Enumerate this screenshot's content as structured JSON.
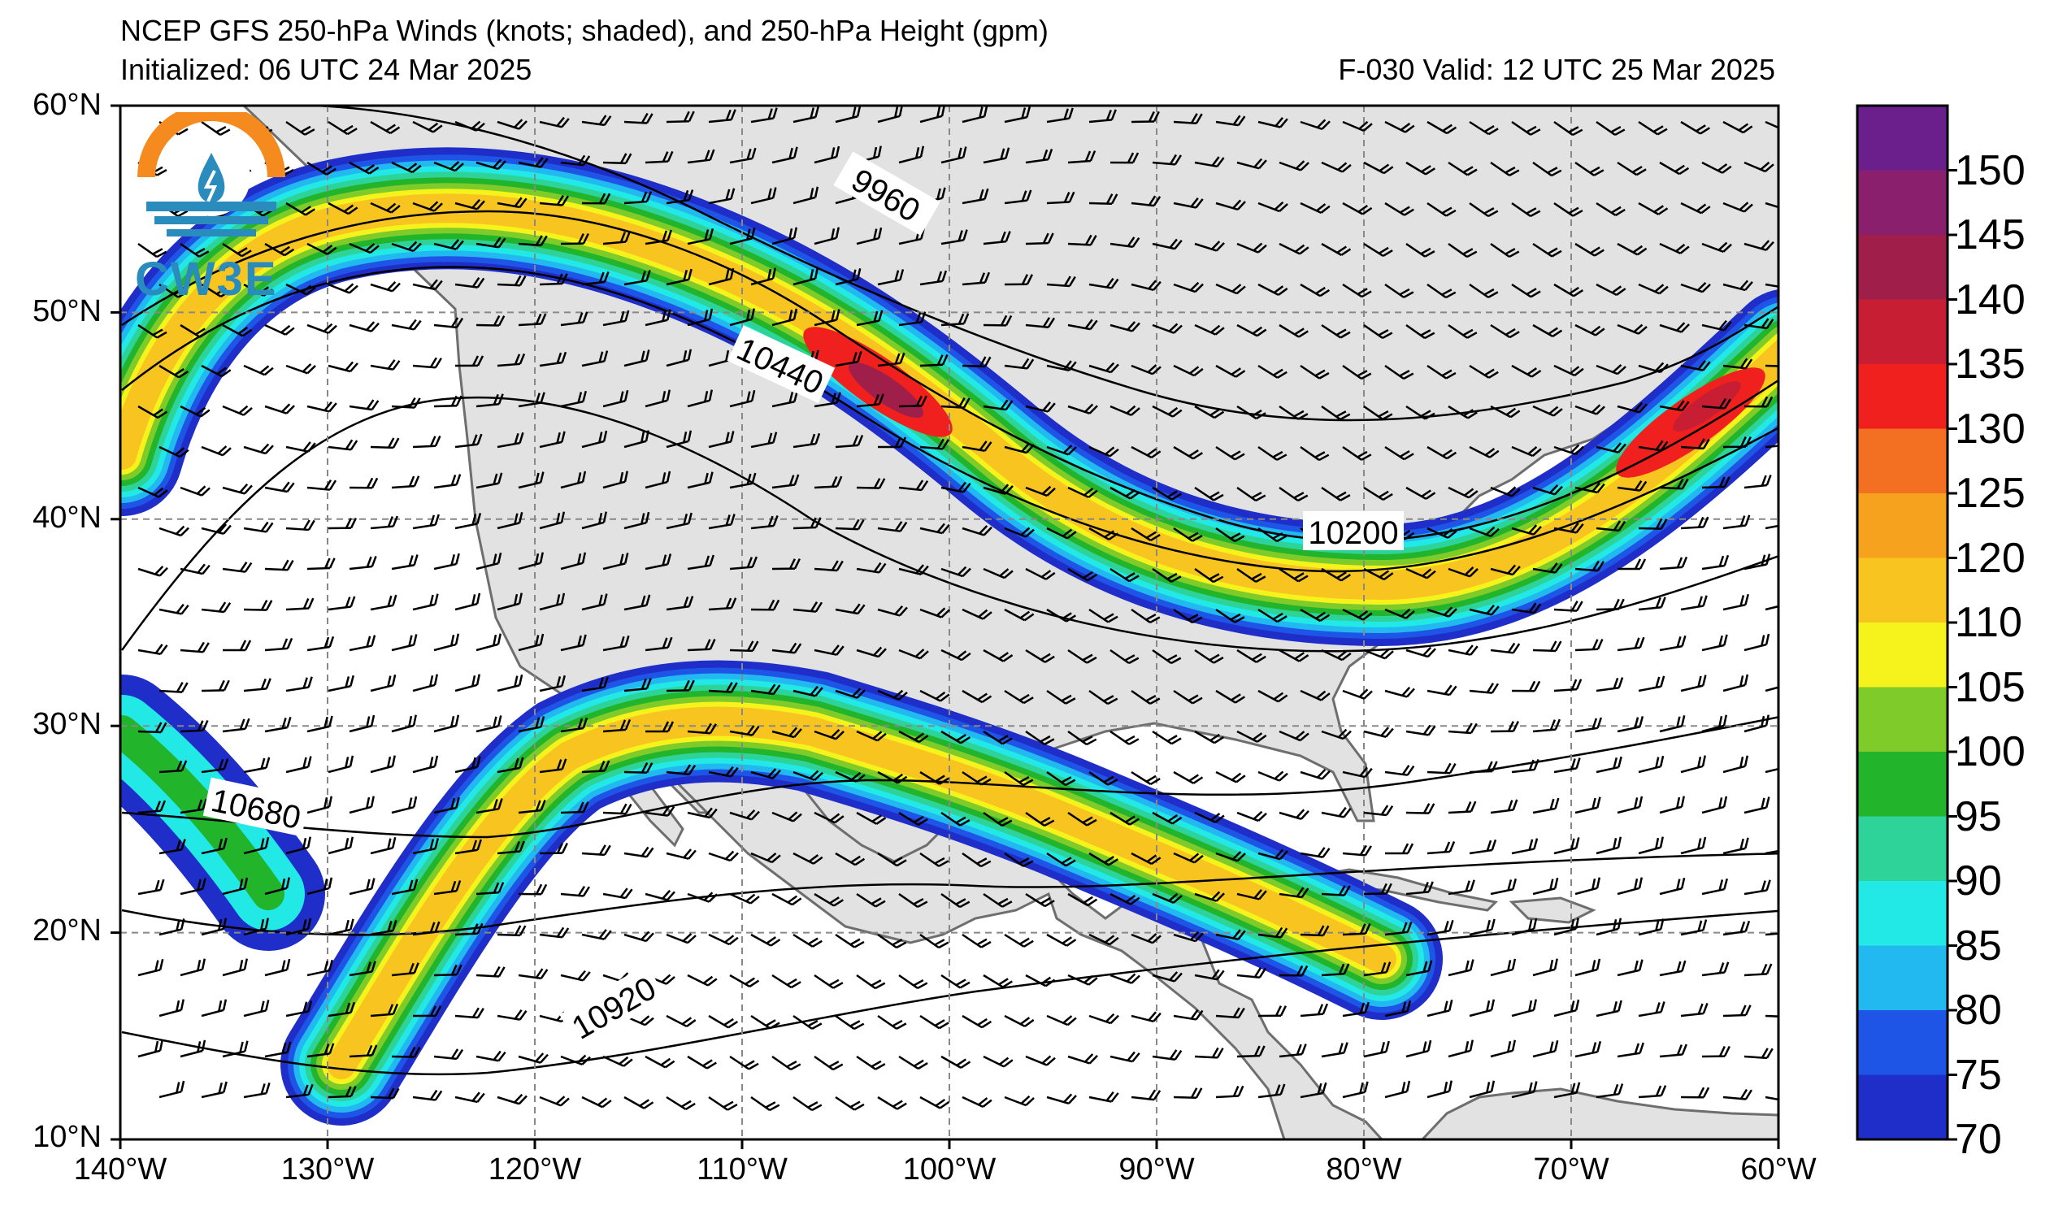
{
  "title": {
    "line1": "NCEP GFS 250-hPa Winds (knots; shaded), and 250-hPa Height (gpm)",
    "initialized": "Initialized: 06 UTC 24 Mar 2025",
    "valid": "F-030  Valid: 12 UTC 25 Mar 2025"
  },
  "logo_text": "CW3E",
  "axes": {
    "lat_labels": [
      "60°N",
      "50°N",
      "40°N",
      "30°N",
      "20°N",
      "10°N"
    ],
    "lon_labels": [
      "140°W",
      "130°W",
      "120°W",
      "110°W",
      "100°W",
      "90°W",
      "80°W",
      "70°W",
      "60°W"
    ],
    "lat_range": [
      10,
      60
    ],
    "lon_range": [
      -140,
      -60
    ]
  },
  "contour_labels": [
    "9960",
    "10440",
    "10200",
    "10680",
    "10920"
  ],
  "colorbar": {
    "labels": [
      "150",
      "145",
      "140",
      "135",
      "130",
      "125",
      "120",
      "110",
      "105",
      "100",
      "95",
      "90",
      "85",
      "80",
      "75",
      "70"
    ],
    "colors": [
      "#6a1f8c",
      "#8a1f6e",
      "#a01f4a",
      "#c81e34",
      "#f0201e",
      "#f37022",
      "#f7a21e",
      "#f8c520",
      "#f6f31c",
      "#7ecb2a",
      "#22b42a",
      "#2ed39a",
      "#22e8e6",
      "#22b8f0",
      "#1f55e6",
      "#1f2ec8"
    ]
  },
  "colors": {
    "land": "#e2e2e2",
    "ocean": "#ffffff",
    "coast": "#6e6e6e"
  }
}
